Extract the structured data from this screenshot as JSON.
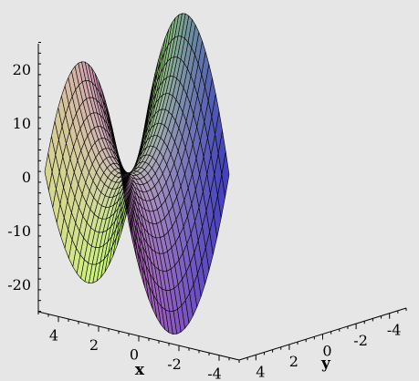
{
  "chart_data": {
    "type": "surface",
    "title": "",
    "expression": "x^2 - y^2",
    "xlabel": "x",
    "ylabel": "y",
    "zlabel": "",
    "xlim": [
      -5,
      5
    ],
    "ylim": [
      -5,
      5
    ],
    "zlim": [
      -25,
      25
    ],
    "x_ticks": [
      4,
      2,
      0,
      -2,
      -4
    ],
    "y_ticks": [
      4,
      2,
      0,
      -2,
      -4
    ],
    "z_ticks": [
      20,
      10,
      0,
      -10,
      -20
    ],
    "grid_n": 25,
    "background_color": "#e6e6e6",
    "corner_colors": {
      "x_pos_y_neg": "#f080f0",
      "x_pos_y_pos": "#f0f0a0",
      "x_neg_y_pos": "#a0f050",
      "x_neg_y_neg": "#4a4ae0",
      "saddle_high_x_neg": "#5868e8",
      "saddle_low_y_neg": "#d04848"
    }
  }
}
